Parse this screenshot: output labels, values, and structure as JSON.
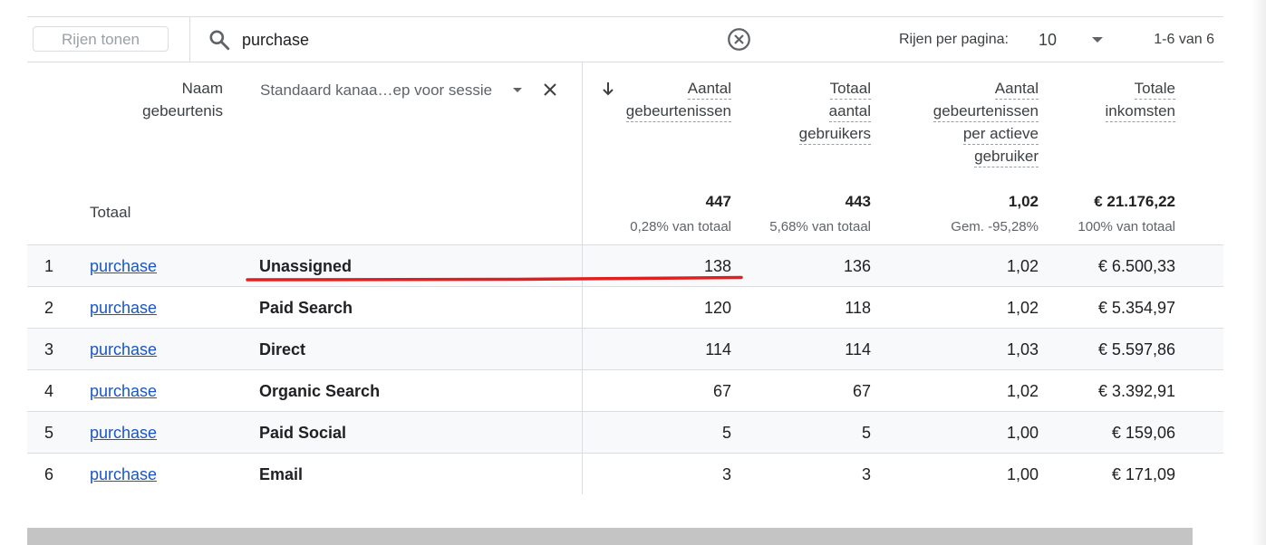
{
  "toolbar": {
    "show_rows_label": "Rijen tonen",
    "search_value": "purchase",
    "rows_per_page_label": "Rijen per pagina:",
    "rows_per_page_value": "10",
    "pagination": "1-6 van 6"
  },
  "headers": {
    "event_name_line1": "Naam",
    "event_name_line2": "gebeurtenis",
    "dimension_select": "Standaard kanaa…ep voor sessie",
    "col1": [
      "Aantal",
      "gebeurtenissen"
    ],
    "col2": [
      "Totaal",
      "aantal",
      "gebruikers"
    ],
    "col3": [
      "Aantal",
      "gebeurtenissen",
      "per actieve",
      "gebruiker"
    ],
    "col4": [
      "Totale",
      "inkomsten"
    ]
  },
  "totals": {
    "label": "Totaal",
    "values": [
      "447",
      "443",
      "1,02",
      "€ 21.176,22"
    ],
    "subs": [
      "0,28% van totaal",
      "5,68% van totaal",
      "Gem. -95,28%",
      "100% van totaal"
    ]
  },
  "rows": [
    {
      "idx": "1",
      "event": "purchase",
      "channel": "Unassigned",
      "events": "138",
      "users": "136",
      "per_user": "1,02",
      "revenue": "€ 6.500,33"
    },
    {
      "idx": "2",
      "event": "purchase",
      "channel": "Paid Search",
      "events": "120",
      "users": "118",
      "per_user": "1,02",
      "revenue": "€ 5.354,97"
    },
    {
      "idx": "3",
      "event": "purchase",
      "channel": "Direct",
      "events": "114",
      "users": "114",
      "per_user": "1,03",
      "revenue": "€ 5.597,86"
    },
    {
      "idx": "4",
      "event": "purchase",
      "channel": "Organic Search",
      "events": "67",
      "users": "67",
      "per_user": "1,02",
      "revenue": "€ 3.392,91"
    },
    {
      "idx": "5",
      "event": "purchase",
      "channel": "Paid Social",
      "events": "5",
      "users": "5",
      "per_user": "1,00",
      "revenue": "€ 159,06"
    },
    {
      "idx": "6",
      "event": "purchase",
      "channel": "Email",
      "events": "3",
      "users": "3",
      "per_user": "1,00",
      "revenue": "€ 171,09"
    }
  ],
  "colors": {
    "link": "#1a56c4",
    "annotation": "#e02020",
    "row_alt": "#f8f9fa"
  }
}
